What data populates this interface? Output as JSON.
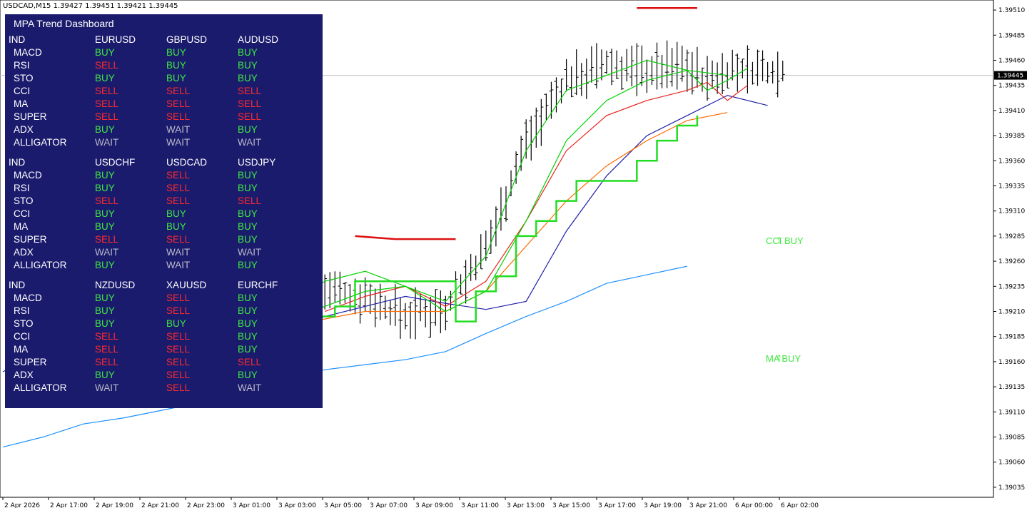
{
  "title": "USDCAD,M15  1.39427 1.39451 1.39421 1.39445",
  "dashboard": {
    "title": "MPA Trend Dashboard",
    "blocks": [
      {
        "header": [
          "IND",
          "EURUSD",
          "GBPUSD",
          "AUDUSD"
        ],
        "rows": [
          [
            "MACD",
            "BUY",
            "BUY",
            "BUY"
          ],
          [
            "RSI",
            "SELL",
            "BUY",
            "BUY"
          ],
          [
            "STO",
            "BUY",
            "BUY",
            "BUY"
          ],
          [
            "CCI",
            "SELL",
            "SELL",
            "SELL"
          ],
          [
            "MA",
            "SELL",
            "SELL",
            "SELL"
          ],
          [
            "SUPER",
            "SELL",
            "SELL",
            "SELL"
          ],
          [
            "ADX",
            "BUY",
            "WAIT",
            "BUY"
          ],
          [
            "ALLIGATOR",
            "WAIT",
            "WAIT",
            "WAIT"
          ]
        ]
      },
      {
        "header": [
          "IND",
          "USDCHF",
          "USDCAD",
          "USDJPY"
        ],
        "rows": [
          [
            "MACD",
            "BUY",
            "SELL",
            "BUY"
          ],
          [
            "RSI",
            "BUY",
            "SELL",
            "BUY"
          ],
          [
            "STO",
            "SELL",
            "SELL",
            "SELL"
          ],
          [
            "CCI",
            "BUY",
            "BUY",
            "BUY"
          ],
          [
            "MA",
            "BUY",
            "BUY",
            "BUY"
          ],
          [
            "SUPER",
            "SELL",
            "SELL",
            "BUY"
          ],
          [
            "ADX",
            "WAIT",
            "WAIT",
            "WAIT"
          ],
          [
            "ALLIGATOR",
            "BUY",
            "WAIT",
            "BUY"
          ]
        ]
      },
      {
        "header": [
          "IND",
          "NZDUSD",
          "XAUUSD",
          "EURCHF"
        ],
        "rows": [
          [
            "MACD",
            "BUY",
            "SELL",
            "BUY"
          ],
          [
            "RSI",
            "BUY",
            "SELL",
            "BUY"
          ],
          [
            "STO",
            "BUY",
            "BUY",
            "BUY"
          ],
          [
            "CCI",
            "SELL",
            "SELL",
            "BUY"
          ],
          [
            "MA",
            "SELL",
            "SELL",
            "BUY"
          ],
          [
            "SUPER",
            "SELL",
            "SELL",
            "SELL"
          ],
          [
            "ADX",
            "BUY",
            "SELL",
            "BUY"
          ],
          [
            "ALLIGATOR",
            "WAIT",
            "SELL",
            "WAIT"
          ]
        ]
      }
    ]
  },
  "signals": [
    {
      "label": "CCI BUY",
      "icon": "up-arrow-icon",
      "time": "6 Apr 02:00",
      "price": 1.3928
    },
    {
      "label": "MA BUY",
      "icon": "up-arrow-icon",
      "time": "6 Apr 02:00",
      "price": 1.39163
    }
  ],
  "colors": {
    "buy": "#3ee83e",
    "sell": "#ff2a2a",
    "wait": "#b9b9c8",
    "bar": "#000000",
    "dashboard_bg": "#1b1b6e",
    "price_line": "#c0c0c0"
  },
  "chart_data": {
    "type": "ohlc",
    "symbol": "USDCAD",
    "timeframe": "M15",
    "open": 1.39427,
    "high": 1.39451,
    "low": 1.39421,
    "close": 1.39445,
    "current_price": "1.39445",
    "y_ticks": [
      "1.39510",
      "1.39485",
      "1.39460",
      "1.39435",
      "1.39410",
      "1.39385",
      "1.39360",
      "1.39335",
      "1.39310",
      "1.39285",
      "1.39260",
      "1.39235",
      "1.39210",
      "1.39185",
      "1.39160",
      "1.39135",
      "1.39110",
      "1.39085",
      "1.39060",
      "1.39035"
    ],
    "x_ticks": [
      "2 Apr 2026",
      "2 Apr 17:00",
      "2 Apr 19:00",
      "2 Apr 21:00",
      "2 Apr 23:00",
      "3 Apr 01:00",
      "3 Apr 03:00",
      "3 Apr 05:00",
      "3 Apr 07:00",
      "3 Apr 09:00",
      "3 Apr 11:00",
      "3 Apr 13:00",
      "3 Apr 15:00",
      "3 Apr 17:00",
      "3 Apr 19:00",
      "3 Apr 21:00",
      "6 Apr 00:00",
      "6 Apr 02:00"
    ],
    "ylim": [
      1.39025,
      1.3952
    ],
    "series": [
      {
        "kind": "ma-200",
        "color": "#1e90ff",
        "points": [
          [
            0,
            1.39075
          ],
          [
            8,
            1.39085
          ],
          [
            16,
            1.39098
          ],
          [
            24,
            1.39104
          ],
          [
            32,
            1.39112
          ],
          [
            40,
            1.3912
          ],
          [
            48,
            1.3913
          ],
          [
            56,
            1.39142
          ],
          [
            64,
            1.39152
          ],
          [
            72,
            1.39157
          ],
          [
            80,
            1.39162
          ],
          [
            88,
            1.3917
          ],
          [
            96,
            1.39188
          ],
          [
            104,
            1.39205
          ],
          [
            112,
            1.3922
          ],
          [
            120,
            1.39238
          ],
          [
            136,
            1.39255
          ]
        ]
      },
      {
        "kind": "ma-slow",
        "color": "#1e1ea8",
        "points": [
          [
            0,
            1.3915
          ],
          [
            16,
            1.3919
          ],
          [
            32,
            1.39195
          ],
          [
            48,
            1.39185
          ],
          [
            56,
            1.3919
          ],
          [
            64,
            1.39205
          ],
          [
            72,
            1.39215
          ],
          [
            80,
            1.39225
          ],
          [
            88,
            1.39218
          ],
          [
            96,
            1.39212
          ],
          [
            104,
            1.3922
          ],
          [
            112,
            1.3929
          ],
          [
            120,
            1.39345
          ],
          [
            128,
            1.39385
          ],
          [
            136,
            1.39405
          ],
          [
            144,
            1.39425
          ],
          [
            152,
            1.39415
          ]
        ]
      },
      {
        "kind": "ma-red",
        "color": "#e8241e",
        "points": [
          [
            64,
            1.3921
          ],
          [
            72,
            1.39225
          ],
          [
            80,
            1.39235
          ],
          [
            88,
            1.39215
          ],
          [
            96,
            1.3924
          ],
          [
            104,
            1.393
          ],
          [
            112,
            1.3937
          ],
          [
            120,
            1.39405
          ],
          [
            128,
            1.3942
          ],
          [
            136,
            1.3943
          ],
          [
            140,
            1.39438
          ],
          [
            144,
            1.3942
          ],
          [
            148,
            1.39435
          ]
        ]
      },
      {
        "kind": "ma-orange",
        "color": "#ff6a00",
        "points": [
          [
            56,
            1.39195
          ],
          [
            72,
            1.3921
          ],
          [
            88,
            1.3921
          ],
          [
            96,
            1.3923
          ],
          [
            104,
            1.39275
          ],
          [
            112,
            1.3932
          ],
          [
            120,
            1.39355
          ],
          [
            128,
            1.3938
          ],
          [
            136,
            1.394
          ],
          [
            144,
            1.39408
          ]
        ]
      },
      {
        "kind": "band-fast",
        "color": "#00d200",
        "points": [
          [
            56,
            1.39215
          ],
          [
            64,
            1.3924
          ],
          [
            72,
            1.3925
          ],
          [
            80,
            1.39235
          ],
          [
            88,
            1.3922
          ],
          [
            96,
            1.39265
          ],
          [
            104,
            1.3937
          ],
          [
            112,
            1.3943
          ],
          [
            120,
            1.39445
          ],
          [
            128,
            1.3946
          ],
          [
            136,
            1.3945
          ],
          [
            140,
            1.3943
          ],
          [
            144,
            1.3944
          ],
          [
            148,
            1.39452
          ]
        ]
      },
      {
        "kind": "band-mid",
        "color": "#00d200",
        "points": [
          [
            56,
            1.392
          ],
          [
            64,
            1.39215
          ],
          [
            72,
            1.3923
          ],
          [
            80,
            1.39235
          ],
          [
            88,
            1.3921
          ],
          [
            96,
            1.3923
          ],
          [
            104,
            1.393
          ],
          [
            112,
            1.3938
          ],
          [
            120,
            1.3942
          ],
          [
            128,
            1.3944
          ],
          [
            136,
            1.3945
          ],
          [
            144,
            1.39445
          ]
        ]
      },
      {
        "kind": "supertrend",
        "color": "#22dd22",
        "points": [
          [
            58,
            1.3919
          ],
          [
            62,
            1.39205
          ],
          [
            66,
            1.39215
          ],
          [
            70,
            1.3924
          ],
          [
            90,
            1.392
          ],
          [
            94,
            1.3923
          ],
          [
            98,
            1.39245
          ],
          [
            102,
            1.39285
          ],
          [
            106,
            1.393
          ],
          [
            110,
            1.3932
          ],
          [
            114,
            1.3934
          ],
          [
            122,
            1.3934
          ],
          [
            126,
            1.3936
          ],
          [
            130,
            1.3938
          ],
          [
            134,
            1.39395
          ],
          [
            138,
            1.39405
          ]
        ]
      },
      {
        "kind": "resistance",
        "color": "#dd1111",
        "segments": [
          [
            [
              70,
              1.39285
            ],
            [
              78,
              1.39282
            ],
            [
              90,
              1.39282
            ]
          ],
          [
            [
              126,
              1.39512
            ],
            [
              138,
              1.39512
            ]
          ]
        ]
      }
    ]
  }
}
